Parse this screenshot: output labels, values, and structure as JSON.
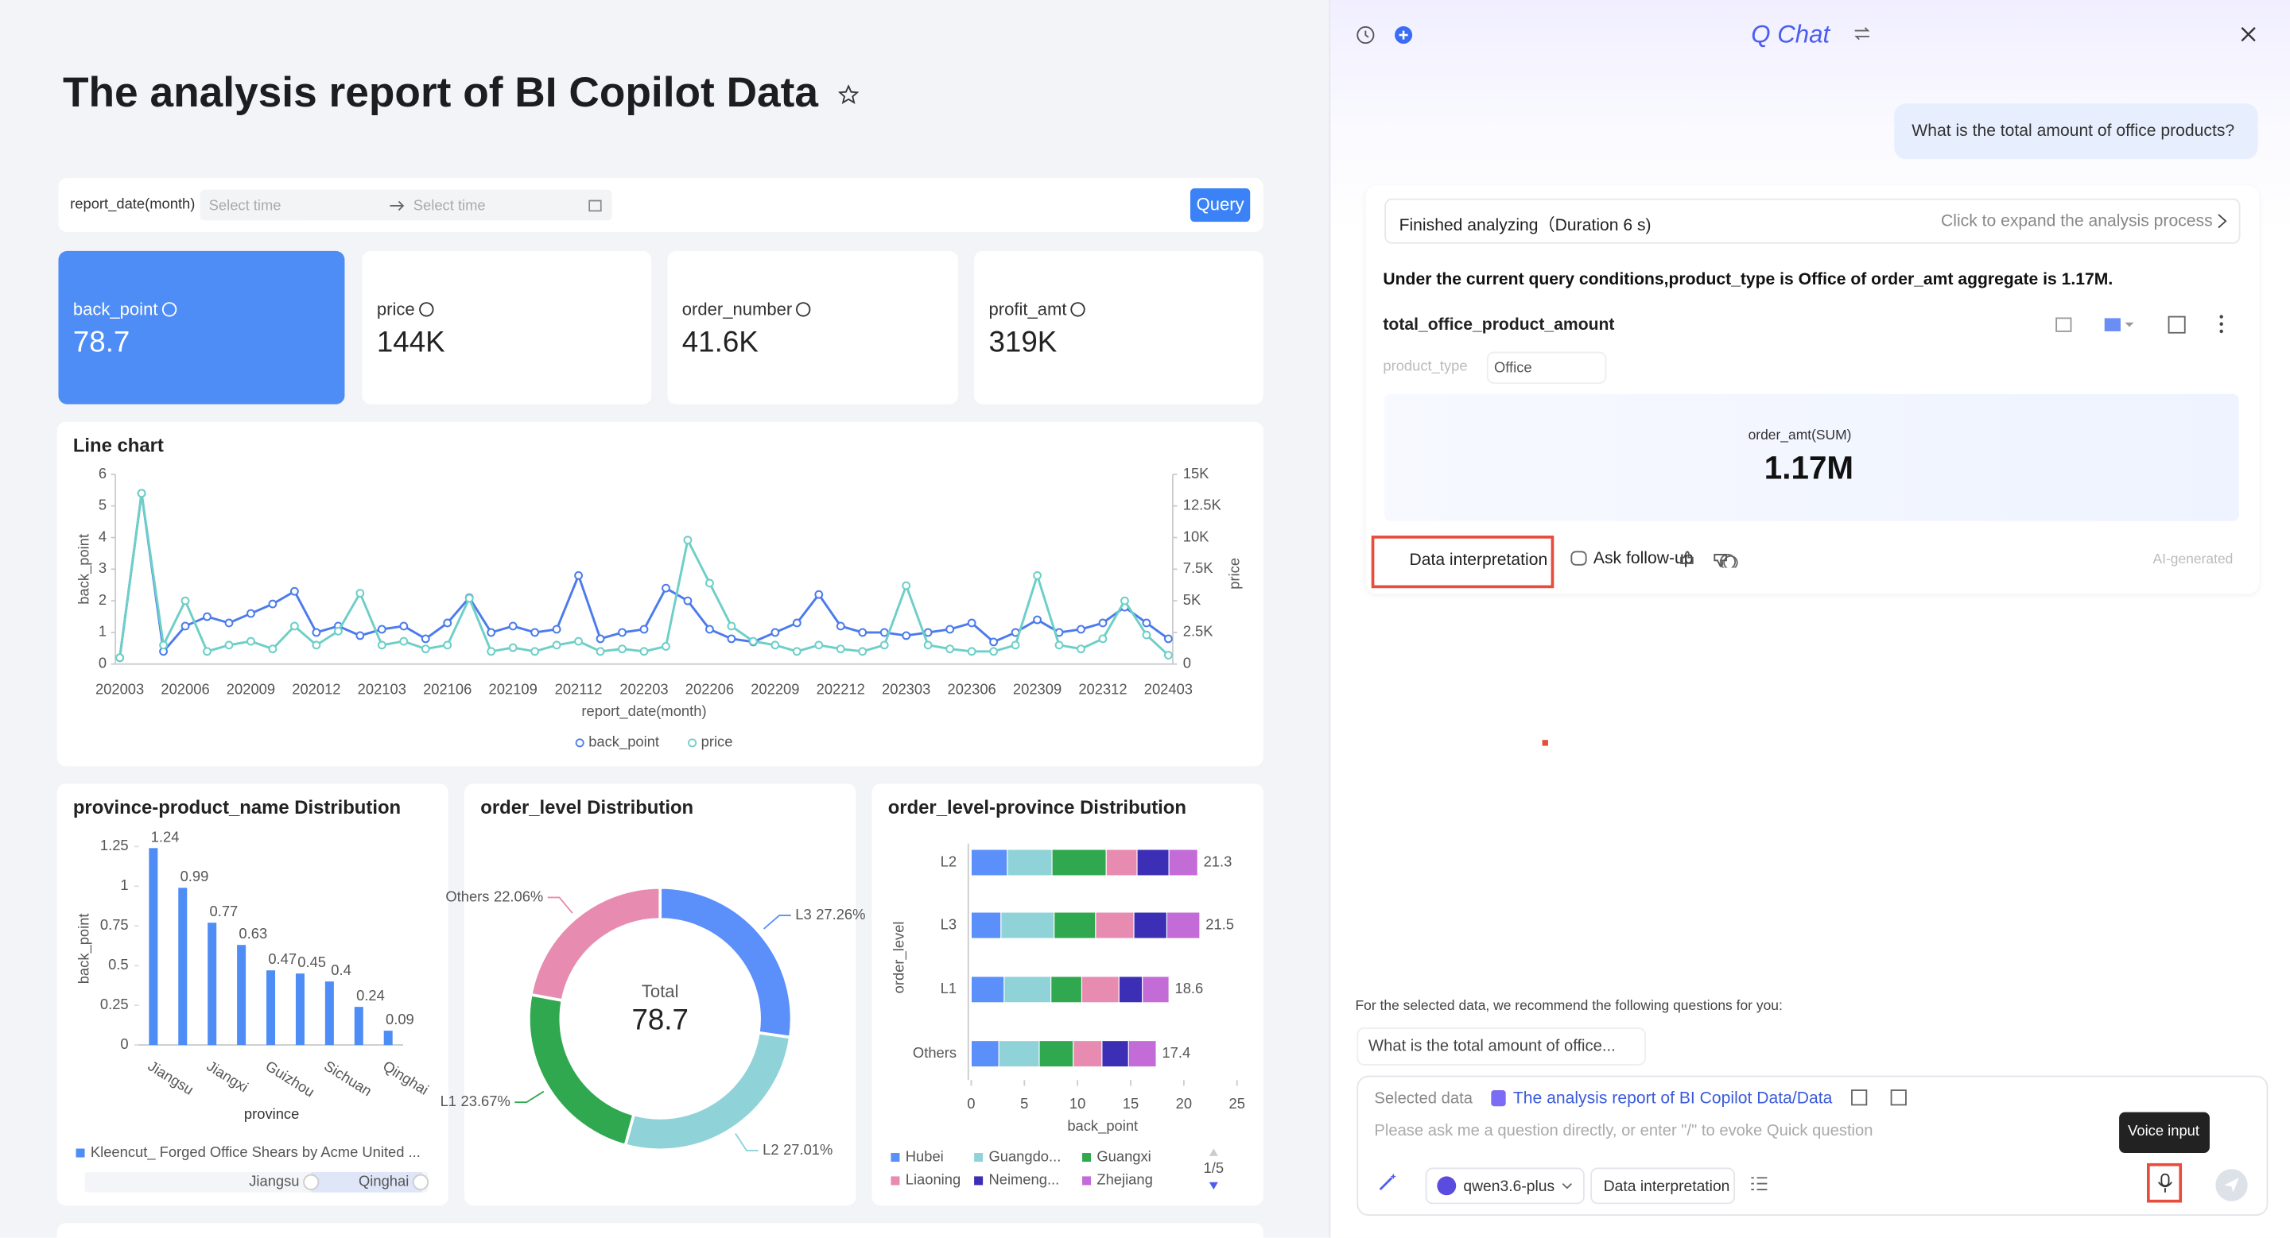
{
  "dashboard": {
    "title": "The analysis report of BI Copilot Data",
    "filter": {
      "label": "report_date(month)",
      "start_placeholder": "Select time",
      "end_placeholder": "Select time",
      "button": "Query"
    },
    "kpis": [
      {
        "name": "back_point",
        "value": "78.7"
      },
      {
        "name": "price",
        "value": "144K"
      },
      {
        "name": "order_number",
        "value": "41.6K"
      },
      {
        "name": "profit_amt",
        "value": "319K"
      }
    ],
    "line_chart": {
      "type": "line",
      "title": "Line chart",
      "x_label": "report_date(month)",
      "y_label": "back_point",
      "y2_label": "price",
      "categories": [
        "202003",
        null,
        null,
        "202006",
        null,
        null,
        "202009",
        null,
        null,
        "202012",
        null,
        null,
        "202103",
        null,
        null,
        "202106",
        null,
        null,
        "202109",
        null,
        null,
        "202112",
        null,
        null,
        "202203",
        null,
        null,
        "202206",
        null,
        null,
        "202209",
        null,
        null,
        "202212",
        null,
        null,
        "202303",
        null,
        null,
        "202306",
        null,
        null,
        "202309",
        null,
        null,
        "202312",
        null,
        null,
        "202403"
      ],
      "ylim": [
        0,
        6
      ],
      "yticks": [
        0,
        1,
        2,
        3,
        4,
        5,
        6
      ],
      "y2lim": [
        0,
        15000
      ],
      "y2ticks": [
        0,
        {
          "value": 2500,
          "label": "2.5K"
        },
        {
          "value": 5000,
          "label": "5K"
        },
        {
          "value": 7500,
          "label": "7.5K"
        },
        {
          "value": 10000,
          "label": "10K"
        },
        {
          "value": 12500,
          "label": "12.5K"
        },
        {
          "value": 15000,
          "label": "15K"
        }
      ],
      "series": [
        {
          "name": "back_point",
          "color": "#4b7bec",
          "values": [
            0.2,
            5.4,
            0.4,
            1.2,
            1.5,
            1.3,
            1.6,
            1.9,
            2.3,
            1.0,
            1.2,
            0.9,
            1.1,
            1.2,
            0.8,
            1.3,
            2.1,
            1.0,
            1.2,
            1.0,
            1.1,
            2.8,
            0.8,
            1.0,
            1.1,
            2.4,
            2.0,
            1.1,
            0.8,
            0.7,
            1.0,
            1.3,
            2.2,
            1.2,
            1.0,
            1.0,
            0.9,
            1.0,
            1.1,
            1.3,
            0.7,
            1.0,
            1.4,
            1.0,
            1.1,
            1.3,
            1.8,
            1.3,
            0.8
          ]
        },
        {
          "name": "price",
          "color": "#6dcfc7",
          "axis": "y2",
          "values": [
            500,
            13500,
            1500,
            5000,
            1000,
            1500,
            1800,
            1200,
            3000,
            1500,
            2600,
            5600,
            1500,
            1800,
            1200,
            1500,
            5200,
            1000,
            1300,
            1000,
            1500,
            1800,
            1000,
            1200,
            1000,
            1400,
            9800,
            6400,
            3000,
            1800,
            1500,
            1000,
            1500,
            1200,
            1000,
            1500,
            6200,
            1500,
            1200,
            1000,
            1000,
            1500,
            7000,
            1500,
            1200,
            2000,
            5000,
            2300,
            700
          ]
        }
      ]
    },
    "bar_chart": {
      "type": "bar",
      "title": "province-product_name Distribution",
      "x_label": "province",
      "y_label": "back_point",
      "categories": [
        "Jiangsu",
        null,
        "Jiangxi",
        null,
        "Guizhou",
        null,
        "Sichuan",
        null,
        "Qinghai"
      ],
      "values": [
        1.24,
        0.99,
        0.77,
        0.63,
        0.47,
        0.45,
        0.4,
        0.24,
        0.09
      ],
      "color": "#4e8df5",
      "ylim": [
        0,
        1.25
      ],
      "yticks": [
        0,
        0.25,
        0.5,
        0.75,
        1,
        1.25
      ],
      "legend": "Kleencut_ Forged Office Shears by Acme United ...",
      "slider": [
        "Jiangsu",
        "Qinghai"
      ]
    },
    "donut_chart": {
      "type": "pie",
      "title": "order_level Distribution",
      "center_label": "Total",
      "center_value": "78.7",
      "categories": [
        "L3",
        "L2",
        "L1",
        "Others"
      ],
      "values": [
        27.26,
        27.01,
        23.67,
        22.06
      ],
      "value_labels": [
        "27.26%",
        "27.01%",
        "23.67%",
        "22.06%"
      ],
      "colors": [
        "#5b8ff9",
        "#8fd3d8",
        "#2fa84f",
        "#e88bb0"
      ]
    },
    "stacked_chart": {
      "type": "stacked_barh",
      "title": "order_level-province Distribution",
      "x_label": "back_point",
      "y_label": "order_level",
      "categories": [
        "L2",
        "L3",
        "L1",
        "Others"
      ],
      "totals": [
        21.3,
        21.5,
        18.6,
        17.4
      ],
      "xlim": [
        0,
        25
      ],
      "xticks": [
        0,
        5,
        10,
        15,
        20,
        25
      ],
      "series": [
        {
          "name": "Hubei",
          "color": "#5b8ff9",
          "values": [
            3.4,
            2.8,
            3.1,
            2.6
          ]
        },
        {
          "name": "Guangdo...",
          "color": "#8fd3d8",
          "values": [
            4.2,
            5.0,
            4.4,
            3.8
          ]
        },
        {
          "name": "Guangxi",
          "color": "#2fa84f",
          "values": [
            5.1,
            3.9,
            2.9,
            3.2
          ]
        },
        {
          "name": "Liaoning",
          "color": "#e88bb0",
          "values": [
            2.9,
            3.6,
            3.5,
            2.7
          ]
        },
        {
          "name": "Neimeng...",
          "color": "#3d2fb5",
          "values": [
            3.0,
            3.1,
            2.2,
            2.5
          ]
        },
        {
          "name": "Zhejiang",
          "color": "#c36bd6",
          "values": [
            2.7,
            3.1,
            2.5,
            2.6
          ]
        }
      ],
      "pager": "1/5"
    }
  },
  "chat": {
    "title": "Q Chat",
    "user_message": "What is the total amount of office products?",
    "status": "Finished analyzing（Duration 6 s)",
    "expand": "Click to expand the analysis process",
    "answer": "Under the current query conditions,product_type is Office of order_amt aggregate is 1.17M.",
    "result_title": "total_office_product_amount",
    "filter_name": "product_type",
    "filter_value": "Office",
    "metric_name": "order_amt(SUM)",
    "metric_value": "1.17M",
    "actions": [
      "Data interpretation",
      "Ask follow-up"
    ],
    "ai_note": "AI-generated",
    "recommend_intro": "For the selected data, we recommend the following questions for you:",
    "suggestion": "What is the total amount of office...",
    "selected_label": "Selected data",
    "selected_value": "The analysis report of BI Copilot Data/Data",
    "placeholder": "Please ask me a question directly, or enter \"/\" to evoke Quick question",
    "model": "qwen3.6-plus",
    "mode": "Data interpretation",
    "tooltip": "Voice input"
  }
}
